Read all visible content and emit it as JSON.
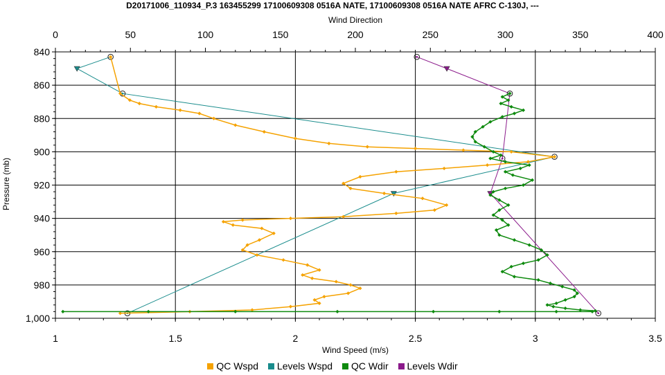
{
  "colors": {
    "qc_wspd": "#F5A200",
    "levels_wspd": "#198C8C",
    "qc_wdir": "#0E8A0E",
    "levels_wdir": "#8B1A8B"
  },
  "chart_data": {
    "type": "line",
    "title": "D20171006_110934_P.3 163455299 17100609308 0516A NATE, 17100609308 0516A NATE AFRC C-130J, ---",
    "xlabel_top": "Wind Direction",
    "xlabel_bottom": "Wind Speed (m/s)",
    "ylabel": "Pressure (mb)",
    "x_top_lim": [
      0,
      400
    ],
    "x_top_ticks": [
      "0",
      "50",
      "100",
      "150",
      "200",
      "250",
      "300",
      "350",
      "400"
    ],
    "x_bottom_lim": [
      1,
      3.5
    ],
    "x_bottom_ticks": [
      "1",
      "1.5",
      "2",
      "2.5",
      "3",
      "3.5"
    ],
    "y_lim": [
      840,
      1000
    ],
    "y_inverted": true,
    "y_ticks": [
      "840",
      "860",
      "880",
      "900",
      "920",
      "940",
      "960",
      "980",
      "1,000"
    ],
    "grid": true,
    "legend_position": "bottom",
    "series": [
      {
        "name": "QC Wspd",
        "axis": "bottom",
        "x": [
          1.23,
          1.27,
          1.31,
          1.35,
          1.42,
          1.52,
          1.6,
          1.66,
          1.75,
          1.87,
          2.0,
          2.14,
          2.3,
          2.5,
          2.7,
          2.9,
          3.08,
          2.97,
          2.8,
          2.62,
          2.42,
          2.27,
          2.2,
          2.23,
          2.37,
          2.53,
          2.63,
          2.58,
          2.42,
          2.2,
          1.98,
          1.78,
          1.7,
          1.74,
          1.86,
          1.91,
          1.85,
          1.8,
          1.78,
          1.84,
          1.95,
          2.05,
          2.1,
          2.03,
          2.07,
          2.17,
          2.23,
          2.27,
          2.22,
          2.12,
          2.08,
          2.1,
          1.98,
          1.82,
          1.56,
          1.27
        ],
        "y": [
          843,
          865,
          869,
          871,
          873,
          875,
          877,
          880,
          884,
          888,
          892,
          895,
          897,
          898,
          899,
          900,
          903,
          906,
          908,
          910,
          912,
          915,
          919,
          922,
          925,
          928,
          932,
          935,
          937,
          939,
          940,
          941,
          942,
          944,
          946,
          949,
          953,
          956,
          959,
          962,
          965,
          968,
          971,
          974,
          976,
          978,
          980,
          982,
          985,
          987,
          989,
          991,
          993,
          995,
          996,
          997
        ]
      },
      {
        "name": "Levels Wspd",
        "axis": "bottom",
        "x": [
          1.23,
          1.09,
          1.28,
          3.08,
          2.41,
          1.3
        ],
        "y": [
          843,
          850,
          865,
          903,
          925,
          997
        ]
      },
      {
        "name": "QC Wdir",
        "axis": "top",
        "x": [
          303,
          298,
          302,
          297,
          304,
          312,
          306,
          298,
          290,
          285,
          280,
          278,
          280,
          286,
          292,
          297,
          290,
          300,
          316,
          310,
          300,
          305,
          318,
          312,
          300,
          292,
          290,
          296,
          302,
          296,
          292,
          298,
          302,
          294,
          296,
          306,
          316,
          324,
          328,
          322,
          312,
          304,
          298,
          306,
          322,
          330,
          338,
          346,
          348,
          346,
          340,
          334,
          328,
          332,
          340,
          350,
          360,
          358,
          334,
          296,
          252,
          188,
          120,
          62,
          5
        ],
        "y": [
          865,
          867,
          869,
          871,
          873,
          875,
          877,
          879,
          882,
          885,
          888,
          891,
          894,
          897,
          900,
          902,
          904,
          906,
          908,
          910,
          912,
          914,
          917,
          920,
          922,
          924,
          926,
          929,
          932,
          935,
          938,
          941,
          944,
          947,
          950,
          953,
          956,
          959,
          962,
          965,
          967,
          969,
          972,
          975,
          977,
          979,
          981,
          983,
          985,
          987,
          989,
          991,
          992,
          993,
          994,
          995,
          995.5,
          996,
          996,
          996,
          996,
          996,
          996,
          996,
          996
        ]
      },
      {
        "name": "Levels Wdir",
        "axis": "top",
        "x": [
          241,
          261,
          303,
          298,
          290,
          362
        ],
        "y": [
          843,
          850,
          865,
          904,
          925,
          997
        ]
      }
    ]
  }
}
